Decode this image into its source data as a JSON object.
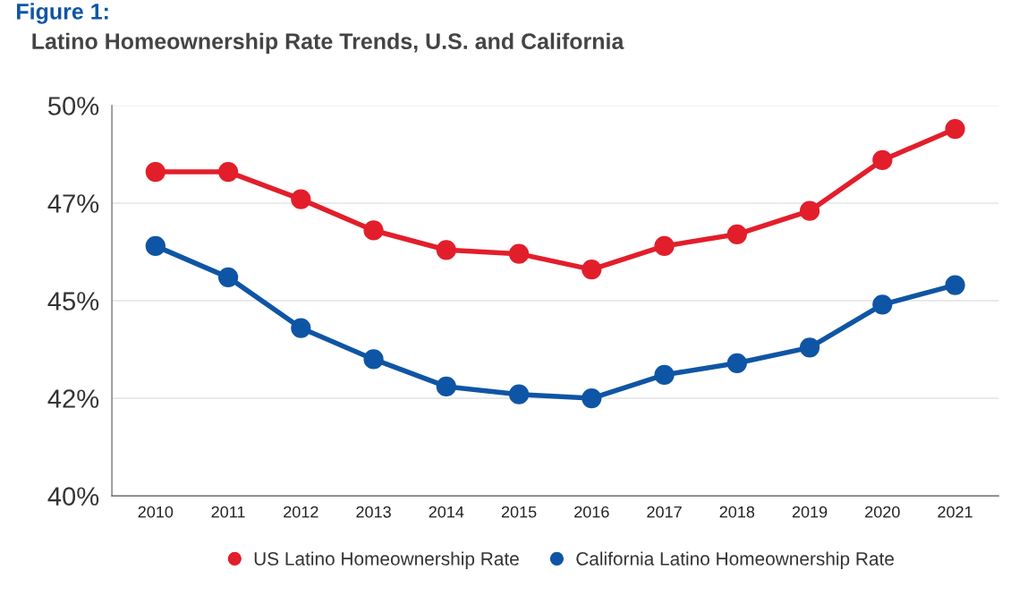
{
  "chart_data": {
    "type": "line",
    "title": "Figure 1:",
    "subtitle": "Latino Homeownership Rate Trends, U.S. and California",
    "categories": [
      "2010",
      "2011",
      "2012",
      "2013",
      "2014",
      "2015",
      "2016",
      "2017",
      "2018",
      "2019",
      "2020",
      "2021"
    ],
    "series": [
      {
        "name": "US Latino Homeownership Rate",
        "color": "#e31e2b",
        "values": [
          48.3,
          48.3,
          47.6,
          46.8,
          46.3,
          46.2,
          45.8,
          46.4,
          46.7,
          47.3,
          48.6,
          49.4
        ]
      },
      {
        "name": "California Latino Homeownership Rate",
        "color": "#0f55a5",
        "values": [
          46.4,
          45.6,
          44.3,
          43.5,
          42.8,
          42.6,
          42.5,
          43.1,
          43.4,
          43.8,
          44.9,
          45.4
        ]
      }
    ],
    "ylim": [
      40,
      50
    ],
    "yticks": [
      {
        "value": 40,
        "label": "40%"
      },
      {
        "value": 42.5,
        "label": "42%"
      },
      {
        "value": 45,
        "label": "45%"
      },
      {
        "value": 47.5,
        "label": "47%"
      },
      {
        "value": 50,
        "label": "50%"
      }
    ],
    "grid": "y",
    "legend": "bottom",
    "marker": "circle",
    "line_style": "solid"
  }
}
